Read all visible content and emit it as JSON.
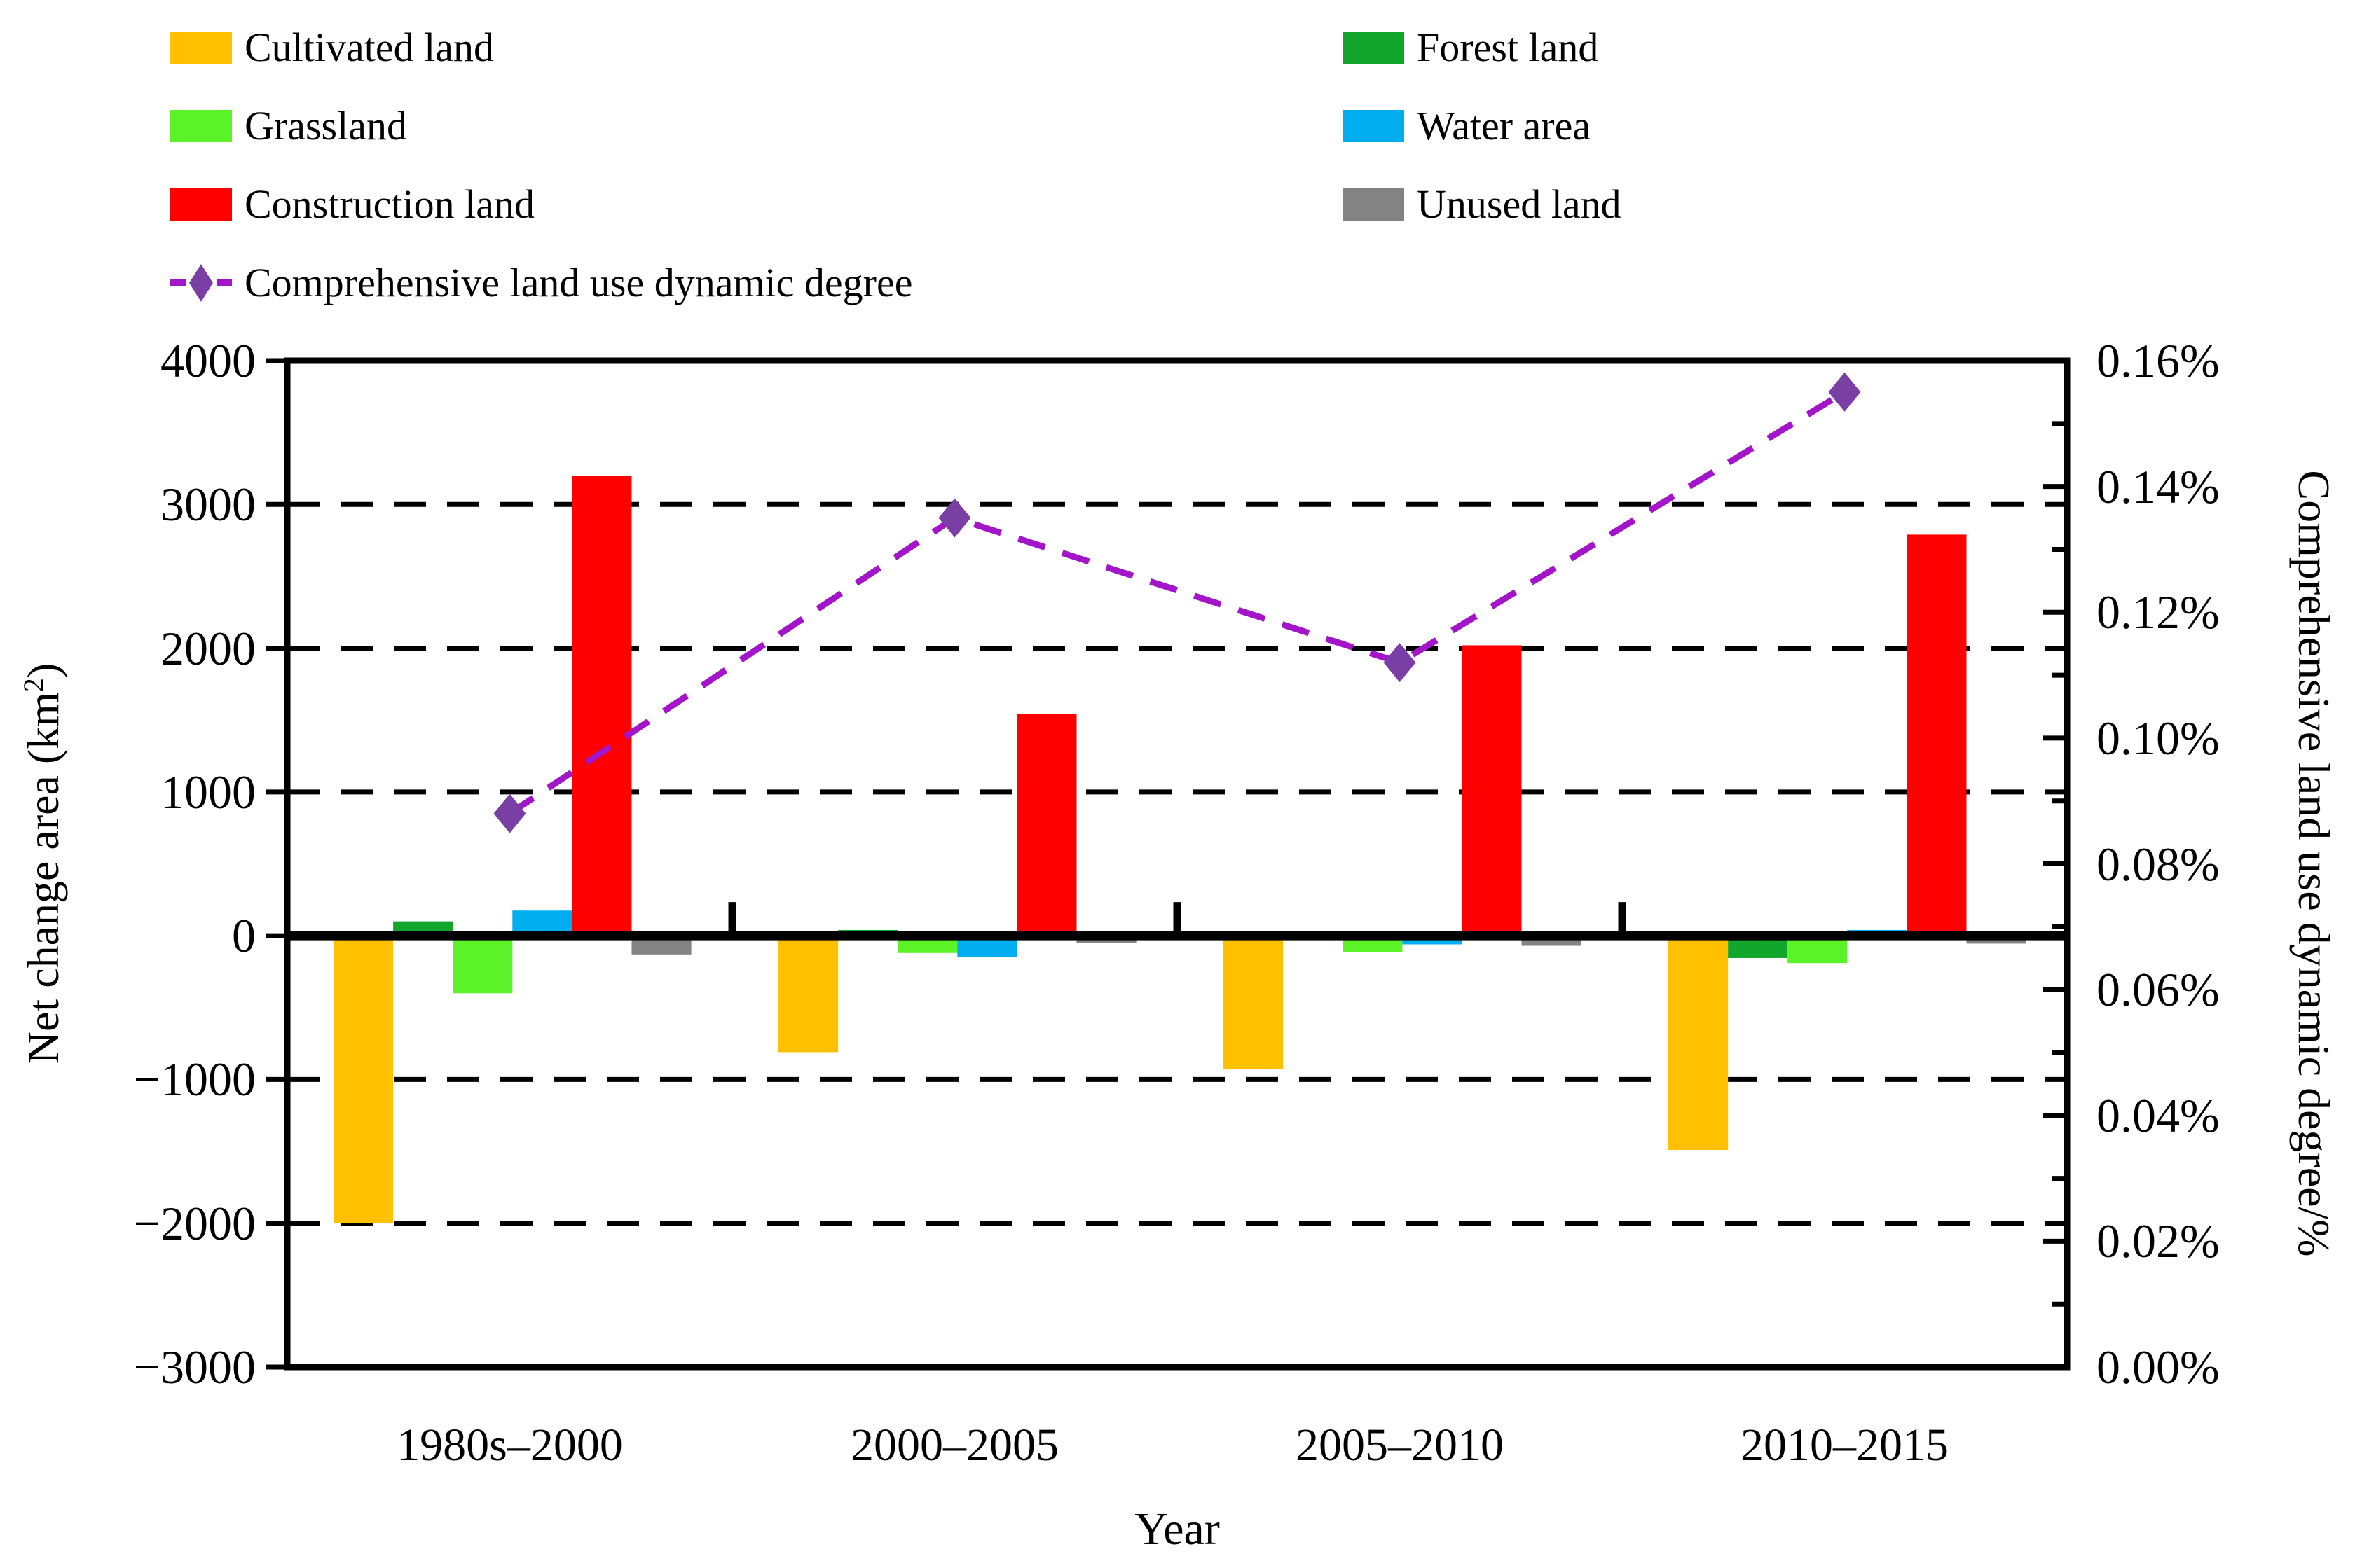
{
  "legend": {
    "col1": [
      {
        "label": "Cultivated land",
        "series": "cultivated"
      },
      {
        "label": "Grassland",
        "series": "grassland"
      },
      {
        "label": "Construction land",
        "series": "construction"
      },
      {
        "label": "Comprehensive land use dynamic degree",
        "series": "dynamic_degree"
      }
    ],
    "col2": [
      {
        "label": "Forest land",
        "series": "forest"
      },
      {
        "label": "Water area",
        "series": "water"
      },
      {
        "label": "Unused land",
        "series": "unused"
      }
    ]
  },
  "chart_data": {
    "type": "bar+line",
    "categories": [
      "1980s–2000",
      "2000–2005",
      "2005–2010",
      "2010–2015"
    ],
    "series": [
      {
        "key": "cultivated",
        "name": "Cultivated land",
        "color": "#FFC000",
        "values": [
          -2000,
          -810,
          -930,
          -1490
        ]
      },
      {
        "key": "forest",
        "name": "Forest land",
        "color": "#12A62C",
        "values": [
          100,
          40,
          -30,
          -155
        ]
      },
      {
        "key": "grassland",
        "name": "Grassland",
        "color": "#5BF327",
        "values": [
          -400,
          -120,
          -115,
          -190
        ]
      },
      {
        "key": "water",
        "name": "Water area",
        "color": "#00AEEF",
        "values": [
          175,
          -150,
          -60,
          40
        ]
      },
      {
        "key": "construction",
        "name": "Construction land",
        "color": "#FF0000",
        "values": [
          3200,
          1540,
          2020,
          2790
        ]
      },
      {
        "key": "unused",
        "name": "Unused land",
        "color": "#838383",
        "values": [
          -130,
          -50,
          -70,
          -55
        ]
      }
    ],
    "line_series": {
      "key": "dynamic_degree",
      "name": "Comprehensive land use dynamic degree",
      "color": "#A315C8",
      "marker_color": "#7A3FA5",
      "values": [
        0.088,
        0.135,
        0.112,
        0.155
      ]
    },
    "left_axis": {
      "min": -3000,
      "max": 4000,
      "tick_step": 1000,
      "tick_labels": [
        "4000",
        "3000",
        "2000",
        "1000",
        "0",
        "−1000",
        "−2000",
        "−3000"
      ],
      "gridlines": [
        3000,
        2000,
        1000,
        -1000,
        -2000
      ]
    },
    "right_axis": {
      "min": 0,
      "max": 0.16,
      "tick_labels": [
        "0.16%",
        "0.14%",
        "0.12%",
        "0.10%",
        "0.08%",
        "0.06%",
        "0.04%",
        "0.02%",
        "0.00%"
      ],
      "minor_step": 0.01
    },
    "ylabel_left": {
      "prefix": "Net change area (km",
      "sup": "2",
      "suffix": ")"
    },
    "ylabel_right": "Comprehensive land use dynamic degree/%",
    "xlabel": "Year",
    "grid": "dashed-horizontal",
    "legend_position": "top"
  }
}
